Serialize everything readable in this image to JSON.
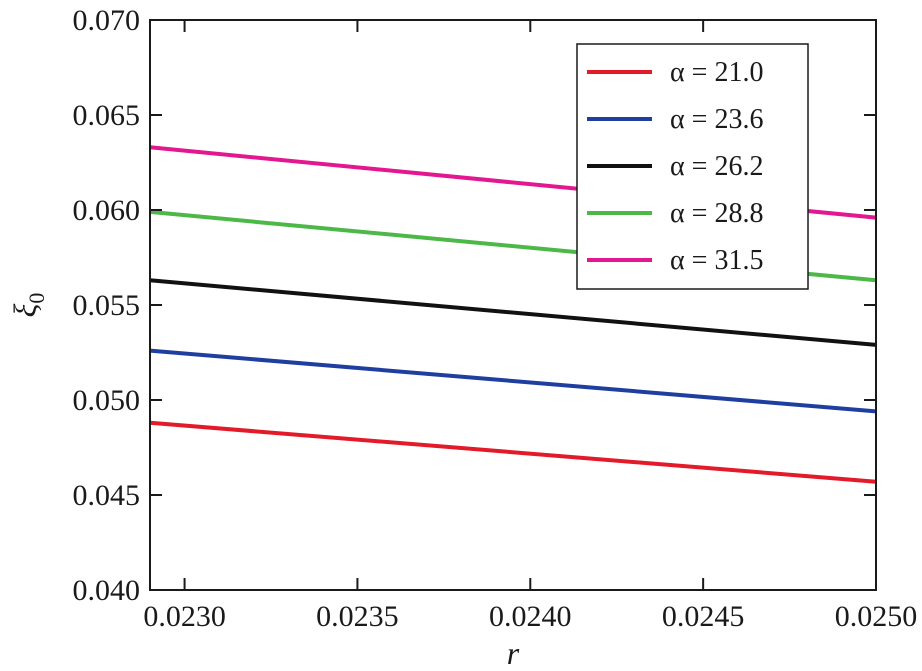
{
  "chart_data": {
    "type": "line",
    "title": "",
    "xlabel": "r",
    "ylabel": "ξ",
    "ylabel_sub": "0",
    "xlim": [
      0.0229,
      0.025
    ],
    "ylim": [
      0.04,
      0.07
    ],
    "x_ticks": [
      0.023,
      0.0235,
      0.024,
      0.0245,
      0.025
    ],
    "x_tick_labels": [
      "0.0230",
      "0.0235",
      "0.0240",
      "0.0245",
      "0.0250"
    ],
    "y_ticks": [
      0.04,
      0.045,
      0.05,
      0.055,
      0.06,
      0.065,
      0.07
    ],
    "y_tick_labels": [
      "0.040",
      "0.045",
      "0.050",
      "0.055",
      "0.060",
      "0.065",
      "0.070"
    ],
    "grid": false,
    "legend_position": "top-right",
    "series": [
      {
        "name": "α = 21.0",
        "color": "#e31a2a",
        "x": [
          0.0229,
          0.025
        ],
        "y": [
          0.0488,
          0.0457
        ]
      },
      {
        "name": "α = 23.6",
        "color": "#1f3fa0",
        "x": [
          0.0229,
          0.025
        ],
        "y": [
          0.0526,
          0.0494
        ]
      },
      {
        "name": "α = 26.2",
        "color": "#111111",
        "x": [
          0.0229,
          0.025
        ],
        "y": [
          0.0563,
          0.0529
        ]
      },
      {
        "name": "α = 28.8",
        "color": "#4cb848",
        "x": [
          0.0229,
          0.025
        ],
        "y": [
          0.0599,
          0.0563
        ]
      },
      {
        "name": "α = 31.5",
        "color": "#e3178f",
        "x": [
          0.0229,
          0.025
        ],
        "y": [
          0.0633,
          0.0596
        ]
      }
    ]
  }
}
